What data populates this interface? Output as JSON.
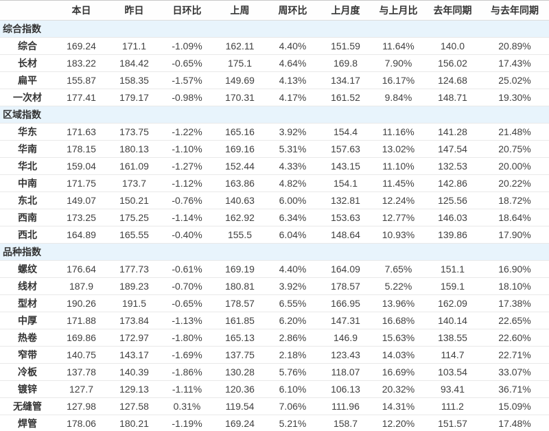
{
  "colors": {
    "positive_pct": "#e60012",
    "negative_pct": "#0f9b0f",
    "section_row_bg": "#e8f4fc",
    "header_text": "#333333",
    "number_text": "#404040"
  },
  "chart_data": {
    "type": "table",
    "title": "",
    "columns": [
      "",
      "本日",
      "昨日",
      "日环比",
      "上周",
      "周环比",
      "上月度",
      "与上月比",
      "去年同期",
      "与去年同期"
    ],
    "sections": [
      {
        "title": "综合指数",
        "rows": [
          {
            "label": "综合",
            "values": [
              "169.24",
              "171.1",
              "-1.09%",
              "162.11",
              "4.40%",
              "151.59",
              "11.64%",
              "140.0",
              "20.89%"
            ]
          },
          {
            "label": "长材",
            "values": [
              "183.22",
              "184.42",
              "-0.65%",
              "175.1",
              "4.64%",
              "169.8",
              "7.90%",
              "156.02",
              "17.43%"
            ]
          },
          {
            "label": "扁平",
            "values": [
              "155.87",
              "158.35",
              "-1.57%",
              "149.69",
              "4.13%",
              "134.17",
              "16.17%",
              "124.68",
              "25.02%"
            ]
          },
          {
            "label": "一次材",
            "values": [
              "177.41",
              "179.17",
              "-0.98%",
              "170.31",
              "4.17%",
              "161.52",
              "9.84%",
              "148.71",
              "19.30%"
            ]
          }
        ]
      },
      {
        "title": "区域指数",
        "rows": [
          {
            "label": "华东",
            "values": [
              "171.63",
              "173.75",
              "-1.22%",
              "165.16",
              "3.92%",
              "154.4",
              "11.16%",
              "141.28",
              "21.48%"
            ]
          },
          {
            "label": "华南",
            "values": [
              "178.15",
              "180.13",
              "-1.10%",
              "169.16",
              "5.31%",
              "157.63",
              "13.02%",
              "147.54",
              "20.75%"
            ]
          },
          {
            "label": "华北",
            "values": [
              "159.04",
              "161.09",
              "-1.27%",
              "152.44",
              "4.33%",
              "143.15",
              "11.10%",
              "132.53",
              "20.00%"
            ]
          },
          {
            "label": "中南",
            "values": [
              "171.75",
              "173.7",
              "-1.12%",
              "163.86",
              "4.82%",
              "154.1",
              "11.45%",
              "142.86",
              "20.22%"
            ]
          },
          {
            "label": "东北",
            "values": [
              "149.07",
              "150.21",
              "-0.76%",
              "140.63",
              "6.00%",
              "132.81",
              "12.24%",
              "125.56",
              "18.72%"
            ]
          },
          {
            "label": "西南",
            "values": [
              "173.25",
              "175.25",
              "-1.14%",
              "162.92",
              "6.34%",
              "153.63",
              "12.77%",
              "146.03",
              "18.64%"
            ]
          },
          {
            "label": "西北",
            "values": [
              "164.89",
              "165.55",
              "-0.40%",
              "155.5",
              "6.04%",
              "148.64",
              "10.93%",
              "139.86",
              "17.90%"
            ]
          }
        ]
      },
      {
        "title": "品种指数",
        "rows": [
          {
            "label": "螺纹",
            "values": [
              "176.64",
              "177.73",
              "-0.61%",
              "169.19",
              "4.40%",
              "164.09",
              "7.65%",
              "151.1",
              "16.90%"
            ]
          },
          {
            "label": "线材",
            "values": [
              "187.9",
              "189.23",
              "-0.70%",
              "180.81",
              "3.92%",
              "178.57",
              "5.22%",
              "159.1",
              "18.10%"
            ]
          },
          {
            "label": "型材",
            "values": [
              "190.26",
              "191.5",
              "-0.65%",
              "178.57",
              "6.55%",
              "166.95",
              "13.96%",
              "162.09",
              "17.38%"
            ]
          },
          {
            "label": "中厚",
            "values": [
              "171.88",
              "173.84",
              "-1.13%",
              "161.85",
              "6.20%",
              "147.31",
              "16.68%",
              "140.14",
              "22.65%"
            ]
          },
          {
            "label": "热卷",
            "values": [
              "169.86",
              "172.97",
              "-1.80%",
              "165.13",
              "2.86%",
              "146.9",
              "15.63%",
              "138.55",
              "22.60%"
            ]
          },
          {
            "label": "窄带",
            "values": [
              "140.75",
              "143.17",
              "-1.69%",
              "137.75",
              "2.18%",
              "123.43",
              "14.03%",
              "114.7",
              "22.71%"
            ]
          },
          {
            "label": "冷板",
            "values": [
              "137.78",
              "140.39",
              "-1.86%",
              "130.28",
              "5.76%",
              "118.07",
              "16.69%",
              "103.54",
              "33.07%"
            ]
          },
          {
            "label": "镀锌",
            "values": [
              "127.7",
              "129.13",
              "-1.11%",
              "120.36",
              "6.10%",
              "106.13",
              "20.32%",
              "93.41",
              "36.71%"
            ]
          },
          {
            "label": "无缝管",
            "values": [
              "127.98",
              "127.58",
              "0.31%",
              "119.54",
              "7.06%",
              "111.96",
              "14.31%",
              "111.2",
              "15.09%"
            ]
          },
          {
            "label": "焊管",
            "values": [
              "178.06",
              "180.21",
              "-1.19%",
              "169.24",
              "5.21%",
              "158.7",
              "12.20%",
              "151.57",
              "17.48%"
            ]
          }
        ]
      }
    ]
  }
}
